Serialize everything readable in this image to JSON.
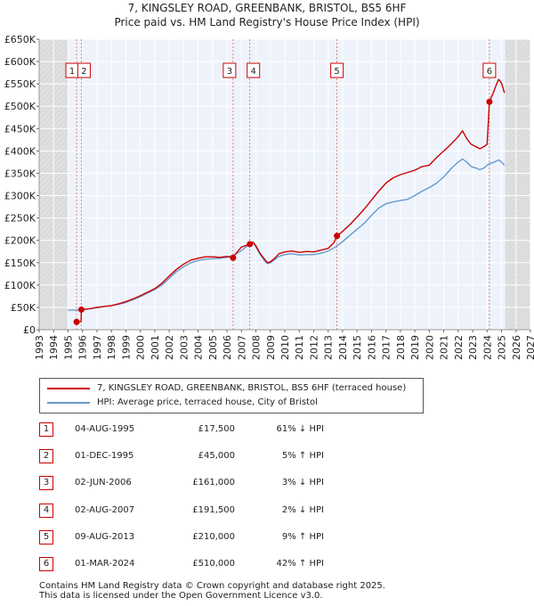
{
  "header": {
    "title_line1": "7, KINGSLEY ROAD, GREENBANK, BRISTOL, BS5 6HF",
    "title_line2": "Price paid vs. HM Land Registry's House Price Index (HPI)"
  },
  "chart_data": {
    "type": "line",
    "title": "7, KINGSLEY ROAD, GREENBANK, BRISTOL, BS5 6HF",
    "subtitle": "Price paid vs. HM Land Registry's House Price Index (HPI)",
    "xlim": [
      1993,
      2027
    ],
    "ylim": [
      0,
      650000
    ],
    "x_ticks": [
      1993,
      1994,
      1995,
      1996,
      1997,
      1998,
      1999,
      2000,
      2001,
      2002,
      2003,
      2004,
      2005,
      2006,
      2007,
      2008,
      2009,
      2010,
      2011,
      2012,
      2013,
      2014,
      2015,
      2016,
      2017,
      2018,
      2019,
      2020,
      2021,
      2022,
      2023,
      2024,
      2025,
      2026,
      2027
    ],
    "y_ticks": [
      0,
      50000,
      100000,
      150000,
      200000,
      250000,
      300000,
      350000,
      400000,
      450000,
      500000,
      550000,
      600000,
      650000
    ],
    "y_tick_labels": [
      "£0",
      "£50K",
      "£100K",
      "£150K",
      "£200K",
      "£250K",
      "£300K",
      "£350K",
      "£400K",
      "£450K",
      "£500K",
      "£550K",
      "£600K",
      "£650K"
    ],
    "shaded_ranges": [
      [
        1993,
        1995.0
      ],
      [
        2025.25,
        2027
      ]
    ],
    "series": [
      {
        "name": "7, KINGSLEY ROAD, GREENBANK, BRISTOL, BS5 6HF (terraced house)",
        "color": "#cc0000",
        "x": [
          1995.59,
          1995.9,
          1995.92,
          1996.5,
          1997,
          1997.5,
          1998,
          1998.5,
          1999,
          1999.5,
          2000,
          2000.5,
          2001,
          2001.5,
          2002,
          2002.5,
          2003,
          2003.5,
          2004,
          2004.5,
          2005,
          2005.5,
          2006,
          2006.42,
          2006.6,
          2007,
          2007.58,
          2007.8,
          2008,
          2008.3,
          2008.6,
          2008.8,
          2009,
          2009.3,
          2009.6,
          2010,
          2010.5,
          2011,
          2011.5,
          2012,
          2012.5,
          2013,
          2013.4,
          2013.61,
          2014,
          2014.5,
          2015,
          2015.5,
          2016,
          2016.5,
          2017,
          2017.5,
          2018,
          2018.5,
          2019,
          2019.5,
          2020,
          2020.5,
          2021,
          2021.5,
          2022,
          2022.3,
          2022.6,
          2022.9,
          2023.2,
          2023.5,
          2023.8,
          2024.0,
          2024.16,
          2024.4,
          2024.6,
          2024.8,
          2025.0,
          2025.2
        ],
        "values": [
          17500,
          18500,
          45000,
          47000,
          50000,
          52000,
          54000,
          58000,
          63000,
          69000,
          76000,
          84000,
          92000,
          104000,
          120000,
          135000,
          147000,
          156000,
          160000,
          163000,
          163000,
          162000,
          164000,
          161000,
          170000,
          185000,
          191500,
          196000,
          188000,
          170000,
          158000,
          150000,
          152000,
          160000,
          170000,
          174000,
          176000,
          173000,
          175000,
          174000,
          178000,
          182000,
          195000,
          210000,
          220000,
          235000,
          252000,
          270000,
          290000,
          310000,
          328000,
          340000,
          347000,
          352000,
          357000,
          365000,
          368000,
          385000,
          400000,
          415000,
          432000,
          445000,
          427000,
          415000,
          410000,
          405000,
          410000,
          415000,
          510000,
          528000,
          545000,
          560000,
          552000,
          530000
        ]
      },
      {
        "name": "HPI: Average price, terraced house, City of Bristol",
        "color": "#6699cc",
        "x": [
          1995.0,
          1995.5,
          1996,
          1996.5,
          1997,
          1997.5,
          1998,
          1998.5,
          1999,
          1999.5,
          2000,
          2000.5,
          2001,
          2001.5,
          2002,
          2002.5,
          2003,
          2003.5,
          2004,
          2004.5,
          2005,
          2005.5,
          2006,
          2006.5,
          2007,
          2007.5,
          2007.8,
          2008,
          2008.3,
          2008.6,
          2008.8,
          2009,
          2009.3,
          2009.6,
          2010,
          2010.5,
          2011,
          2011.5,
          2012,
          2012.5,
          2013,
          2013.5,
          2014,
          2014.5,
          2015,
          2015.5,
          2016,
          2016.5,
          2017,
          2017.5,
          2018,
          2018.5,
          2019,
          2019.5,
          2020,
          2020.5,
          2021,
          2021.5,
          2022,
          2022.3,
          2022.6,
          2022.9,
          2023.2,
          2023.5,
          2023.8,
          2024.0,
          2024.2,
          2024.5,
          2024.8,
          2025.0,
          2025.2
        ],
        "values": [
          44000,
          44000,
          45000,
          47000,
          49500,
          52000,
          54000,
          57000,
          61000,
          67000,
          74000,
          82000,
          90000,
          100000,
          115000,
          130000,
          141000,
          150000,
          155000,
          158000,
          159000,
          160000,
          162000,
          167000,
          177000,
          190000,
          196000,
          185000,
          168000,
          154000,
          148000,
          150000,
          157000,
          164000,
          168000,
          170000,
          167000,
          168000,
          168000,
          171000,
          176000,
          185000,
          197000,
          211000,
          225000,
          238000,
          256000,
          272000,
          282000,
          286000,
          289000,
          292000,
          300000,
          310000,
          318000,
          328000,
          342000,
          360000,
          375000,
          382000,
          375000,
          365000,
          362000,
          358000,
          362000,
          368000,
          372000,
          375000,
          380000,
          375000,
          368000
        ]
      }
    ],
    "transactions": [
      {
        "num": "1",
        "x": 1995.59,
        "price": 17500
      },
      {
        "num": "2",
        "x": 1995.92,
        "price": 45000
      },
      {
        "num": "3",
        "x": 2006.42,
        "price": 161000
      },
      {
        "num": "4",
        "x": 2007.58,
        "price": 191500
      },
      {
        "num": "5",
        "x": 2013.61,
        "price": 210000
      },
      {
        "num": "6",
        "x": 2024.16,
        "price": 510000
      }
    ]
  },
  "legend": {
    "property_label": "7, KINGSLEY ROAD, GREENBANK, BRISTOL, BS5 6HF (terraced house)",
    "hpi_label": "HPI: Average price, terraced house, City of Bristol"
  },
  "transactions_table": [
    {
      "num": "1",
      "date": "04-AUG-1995",
      "price": "£17,500",
      "hpi": "61% ↓ HPI"
    },
    {
      "num": "2",
      "date": "01-DEC-1995",
      "price": "£45,000",
      "hpi": "5% ↑ HPI"
    },
    {
      "num": "3",
      "date": "02-JUN-2006",
      "price": "£161,000",
      "hpi": "3% ↓ HPI"
    },
    {
      "num": "4",
      "date": "02-AUG-2007",
      "price": "£191,500",
      "hpi": "2% ↓ HPI"
    },
    {
      "num": "5",
      "date": "09-AUG-2013",
      "price": "£210,000",
      "hpi": "9% ↑ HPI"
    },
    {
      "num": "6",
      "date": "01-MAR-2024",
      "price": "£510,000",
      "hpi": "42% ↑ HPI"
    }
  ],
  "footer": {
    "line1": "Contains HM Land Registry data © Crown copyright and database right 2025.",
    "line2": "This data is licensed under the Open Government Licence v3.0."
  }
}
